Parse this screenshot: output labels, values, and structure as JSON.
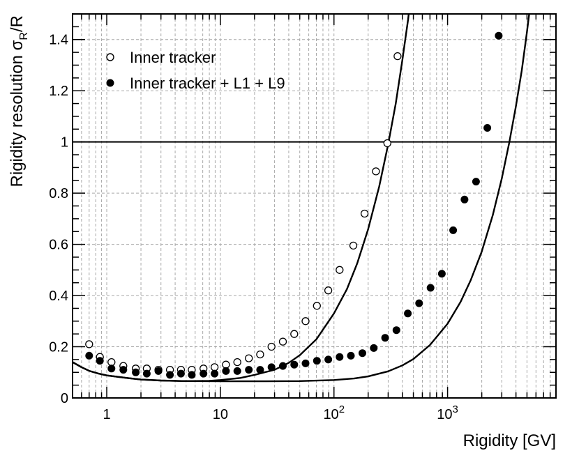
{
  "chart_data": {
    "type": "scatter",
    "xlabel": "Rigidity [GV]",
    "ylabel": "Rigidity resolution σ",
    "ylabel_sub": "R",
    "ylabel_tail": "/R",
    "xscale": "log",
    "xlim": [
      0.5,
      9000
    ],
    "ylim": [
      0,
      1.5
    ],
    "grid": true,
    "legend_position": "top-left",
    "x_ticks": [
      {
        "value": 1,
        "label": "1",
        "sup": ""
      },
      {
        "value": 10,
        "label": "10",
        "sup": ""
      },
      {
        "value": 100,
        "label": "10",
        "sup": "2"
      },
      {
        "value": 1000,
        "label": "10",
        "sup": "3"
      }
    ],
    "y_ticks": [
      {
        "value": 0,
        "label": "0"
      },
      {
        "value": 0.2,
        "label": "0.2"
      },
      {
        "value": 0.4,
        "label": "0.4"
      },
      {
        "value": 0.6,
        "label": "0.6"
      },
      {
        "value": 0.8,
        "label": "0.8"
      },
      {
        "value": 1.0,
        "label": "1"
      },
      {
        "value": 1.2,
        "label": "1.2"
      },
      {
        "value": 1.4,
        "label": "1.4"
      }
    ],
    "reference_line": {
      "y": 1.0
    },
    "series": [
      {
        "name": "Inner tracker",
        "marker": "open-circle",
        "points": [
          [
            0.7,
            0.21
          ],
          [
            0.87,
            0.16
          ],
          [
            1.1,
            0.14
          ],
          [
            1.4,
            0.125
          ],
          [
            1.8,
            0.115
          ],
          [
            2.25,
            0.115
          ],
          [
            2.85,
            0.11
          ],
          [
            3.6,
            0.11
          ],
          [
            4.5,
            0.11
          ],
          [
            5.6,
            0.11
          ],
          [
            7.1,
            0.115
          ],
          [
            8.9,
            0.12
          ],
          [
            11.2,
            0.13
          ],
          [
            14.1,
            0.14
          ],
          [
            17.8,
            0.155
          ],
          [
            22.4,
            0.17
          ],
          [
            28.2,
            0.2
          ],
          [
            35.5,
            0.22
          ],
          [
            44.7,
            0.25
          ],
          [
            56.2,
            0.3
          ],
          [
            70.8,
            0.36
          ],
          [
            89.1,
            0.42
          ],
          [
            112,
            0.5
          ],
          [
            148,
            0.595
          ],
          [
            186,
            0.72
          ],
          [
            234,
            0.885
          ],
          [
            295,
            0.995
          ],
          [
            363,
            1.335
          ]
        ]
      },
      {
        "name": "Inner tracker + L1 + L9",
        "marker": "filled-circle",
        "points": [
          [
            0.7,
            0.165
          ],
          [
            0.87,
            0.145
          ],
          [
            1.1,
            0.115
          ],
          [
            1.4,
            0.11
          ],
          [
            1.8,
            0.1
          ],
          [
            2.25,
            0.095
          ],
          [
            2.85,
            0.105
          ],
          [
            3.6,
            0.09
          ],
          [
            4.5,
            0.095
          ],
          [
            5.6,
            0.09
          ],
          [
            7.1,
            0.095
          ],
          [
            8.9,
            0.095
          ],
          [
            11.2,
            0.105
          ],
          [
            14.1,
            0.105
          ],
          [
            17.8,
            0.11
          ],
          [
            22.4,
            0.11
          ],
          [
            28.2,
            0.12
          ],
          [
            35.5,
            0.125
          ],
          [
            44.7,
            0.13
          ],
          [
            56.2,
            0.135
          ],
          [
            70.8,
            0.145
          ],
          [
            89.1,
            0.15
          ],
          [
            112,
            0.16
          ],
          [
            141,
            0.165
          ],
          [
            178,
            0.175
          ],
          [
            224,
            0.195
          ],
          [
            282,
            0.235
          ],
          [
            355,
            0.265
          ],
          [
            447,
            0.33
          ],
          [
            562,
            0.37
          ],
          [
            708,
            0.43
          ],
          [
            891,
            0.485
          ],
          [
            1120,
            0.655
          ],
          [
            1410,
            0.775
          ],
          [
            1780,
            0.845
          ],
          [
            2240,
            1.055
          ],
          [
            2820,
            1.415
          ]
        ]
      }
    ],
    "fit_curves": [
      {
        "points": [
          [
            0.5,
            0.14
          ],
          [
            0.6,
            0.12
          ],
          [
            0.7,
            0.106
          ],
          [
            0.85,
            0.095
          ],
          [
            1,
            0.088
          ],
          [
            1.5,
            0.078
          ],
          [
            2,
            0.072
          ],
          [
            3,
            0.068
          ],
          [
            5,
            0.066
          ],
          [
            8,
            0.067
          ],
          [
            10,
            0.07
          ],
          [
            15,
            0.078
          ],
          [
            20,
            0.09
          ],
          [
            30,
            0.11
          ],
          [
            40,
            0.137
          ],
          [
            50,
            0.167
          ],
          [
            70,
            0.229
          ],
          [
            100,
            0.33
          ],
          [
            130,
            0.425
          ],
          [
            160,
            0.525
          ],
          [
            200,
            0.66
          ],
          [
            250,
            0.825
          ],
          [
            300,
            0.99
          ],
          [
            350,
            1.15
          ],
          [
            400,
            1.32
          ],
          [
            450,
            1.48
          ],
          [
            460,
            1.52
          ]
        ]
      },
      {
        "points": [
          [
            0.5,
            0.14
          ],
          [
            0.6,
            0.12
          ],
          [
            0.7,
            0.106
          ],
          [
            0.85,
            0.095
          ],
          [
            1,
            0.088
          ],
          [
            1.5,
            0.078
          ],
          [
            2,
            0.072
          ],
          [
            3,
            0.068
          ],
          [
            5,
            0.066
          ],
          [
            10,
            0.065
          ],
          [
            20,
            0.065
          ],
          [
            50,
            0.066
          ],
          [
            100,
            0.07
          ],
          [
            150,
            0.076
          ],
          [
            200,
            0.084
          ],
          [
            300,
            0.104
          ],
          [
            400,
            0.127
          ],
          [
            500,
            0.152
          ],
          [
            700,
            0.207
          ],
          [
            1000,
            0.29
          ],
          [
            1300,
            0.375
          ],
          [
            1600,
            0.46
          ],
          [
            2000,
            0.572
          ],
          [
            2500,
            0.714
          ],
          [
            3000,
            0.857
          ],
          [
            3500,
            1.0
          ],
          [
            4000,
            1.14
          ],
          [
            4500,
            1.28
          ],
          [
            5000,
            1.43
          ],
          [
            5300,
            1.52
          ]
        ]
      }
    ]
  }
}
